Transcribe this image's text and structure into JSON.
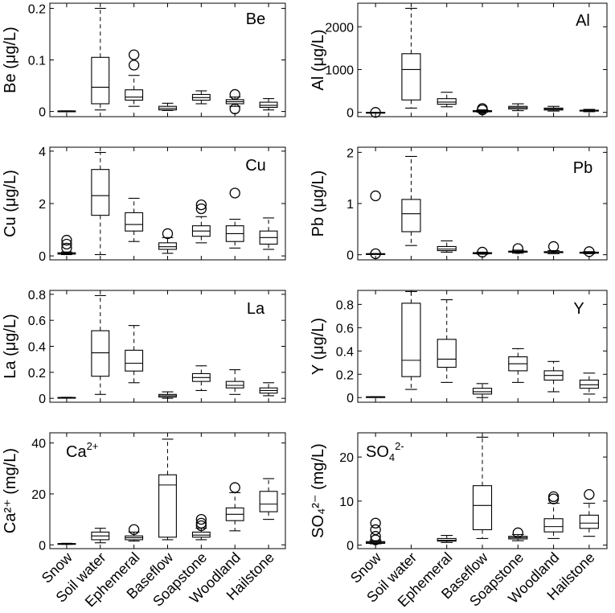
{
  "chart_data": [
    {
      "type": "boxplot",
      "label": "Be",
      "ylabel": "Be (μg/L)",
      "ylim": [
        -0.01,
        0.21
      ],
      "yticks": [
        0,
        0.1,
        0.2
      ],
      "categories": [
        "Snow",
        "Soil water",
        "Ephemeral",
        "Baseflow",
        "Soapstone",
        "Woodland",
        "Hailstone"
      ],
      "boxes": [
        {
          "min": 0.001,
          "q1": 0.001,
          "median": 0.001,
          "q3": 0.001,
          "max": 0.001,
          "outliers": []
        },
        {
          "min": 0.003,
          "q1": 0.015,
          "median": 0.047,
          "q3": 0.105,
          "max": 0.2,
          "outliers": []
        },
        {
          "min": 0.01,
          "q1": 0.022,
          "median": 0.028,
          "q3": 0.042,
          "max": 0.07,
          "outliers": [
            0.09,
            0.11
          ]
        },
        {
          "min": 0.002,
          "q1": 0.003,
          "median": 0.006,
          "q3": 0.01,
          "max": 0.016,
          "outliers": []
        },
        {
          "min": 0.015,
          "q1": 0.022,
          "median": 0.027,
          "q3": 0.033,
          "max": 0.04,
          "outliers": []
        },
        {
          "min": 0.01,
          "q1": 0.015,
          "median": 0.019,
          "q3": 0.023,
          "max": 0.028,
          "outliers": [
            0.033,
            0.005
          ]
        },
        {
          "min": 0.003,
          "q1": 0.008,
          "median": 0.012,
          "q3": 0.018,
          "max": 0.025,
          "outliers": []
        }
      ]
    },
    {
      "type": "boxplot",
      "label": "Al",
      "ylabel": "Al (μg/L)",
      "ylim": [
        -100,
        2550
      ],
      "yticks": [
        0,
        1000,
        2000
      ],
      "categories": [
        "Snow",
        "Soil water",
        "Ephemeral",
        "Baseflow",
        "Soapstone",
        "Woodland",
        "Hailstone"
      ],
      "boxes": [
        {
          "min": 0,
          "q1": 0,
          "median": 0,
          "q3": 0,
          "max": 0,
          "outliers": [
            0
          ]
        },
        {
          "min": 100,
          "q1": 290,
          "median": 1000,
          "q3": 1370,
          "max": 2430,
          "outliers": []
        },
        {
          "min": 130,
          "q1": 190,
          "median": 240,
          "q3": 320,
          "max": 470,
          "outliers": []
        },
        {
          "min": 5,
          "q1": 15,
          "median": 25,
          "q3": 40,
          "max": 60,
          "outliers": [
            60,
            90
          ]
        },
        {
          "min": 40,
          "q1": 80,
          "median": 110,
          "q3": 140,
          "max": 200,
          "outliers": []
        },
        {
          "min": 30,
          "q1": 55,
          "median": 75,
          "q3": 100,
          "max": 140,
          "outliers": []
        },
        {
          "min": 15,
          "q1": 30,
          "median": 40,
          "q3": 50,
          "max": 70,
          "outliers": []
        }
      ]
    },
    {
      "type": "boxplot",
      "label": "Cu",
      "ylabel": "Cu (μg/L)",
      "ylim": [
        -0.15,
        4.15
      ],
      "yticks": [
        0,
        2,
        4
      ],
      "categories": [
        "Snow",
        "Soil water",
        "Ephemeral",
        "Baseflow",
        "Soapstone",
        "Woodland",
        "Hailstone"
      ],
      "boxes": [
        {
          "min": 0.05,
          "q1": 0.07,
          "median": 0.09,
          "q3": 0.12,
          "max": 0.15,
          "outliers": [
            0.3,
            0.45,
            0.6
          ]
        },
        {
          "min": 0.05,
          "q1": 1.55,
          "median": 2.3,
          "q3": 3.3,
          "max": 3.95,
          "outliers": []
        },
        {
          "min": 0.55,
          "q1": 0.95,
          "median": 1.2,
          "q3": 1.65,
          "max": 2.2,
          "outliers": []
        },
        {
          "min": 0.1,
          "q1": 0.25,
          "median": 0.35,
          "q3": 0.5,
          "max": 0.7,
          "outliers": [
            0.85
          ]
        },
        {
          "min": 0.5,
          "q1": 0.75,
          "median": 0.95,
          "q3": 1.15,
          "max": 1.5,
          "outliers": [
            1.8,
            1.95
          ]
        },
        {
          "min": 0.3,
          "q1": 0.55,
          "median": 0.85,
          "q3": 1.15,
          "max": 1.4,
          "outliers": [
            2.4
          ]
        },
        {
          "min": 0.25,
          "q1": 0.45,
          "median": 0.7,
          "q3": 0.95,
          "max": 1.45,
          "outliers": []
        }
      ]
    },
    {
      "type": "boxplot",
      "label": "Pb",
      "ylabel": "Pb (μg/L)",
      "ylim": [
        -0.1,
        2.1
      ],
      "yticks": [
        0,
        1,
        2
      ],
      "categories": [
        "Snow",
        "Soil water",
        "Ephemeral",
        "Baseflow",
        "Soapstone",
        "Woodland",
        "Hailstone"
      ],
      "boxes": [
        {
          "min": 0.02,
          "q1": 0.02,
          "median": 0.02,
          "q3": 0.02,
          "max": 0.02,
          "outliers": [
            1.15,
            0.02
          ]
        },
        {
          "min": 0.18,
          "q1": 0.45,
          "median": 0.8,
          "q3": 1.08,
          "max": 1.92,
          "outliers": []
        },
        {
          "min": 0.05,
          "q1": 0.08,
          "median": 0.11,
          "q3": 0.16,
          "max": 0.27,
          "outliers": []
        },
        {
          "min": 0.01,
          "q1": 0.02,
          "median": 0.03,
          "q3": 0.04,
          "max": 0.05,
          "outliers": [
            0.05
          ]
        },
        {
          "min": 0.03,
          "q1": 0.05,
          "median": 0.06,
          "q3": 0.07,
          "max": 0.09,
          "outliers": [
            0.12
          ]
        },
        {
          "min": 0.02,
          "q1": 0.04,
          "median": 0.05,
          "q3": 0.06,
          "max": 0.08,
          "outliers": [
            0.16
          ]
        },
        {
          "min": 0.02,
          "q1": 0.03,
          "median": 0.04,
          "q3": 0.05,
          "max": 0.06,
          "outliers": [
            0.06
          ]
        }
      ]
    },
    {
      "type": "boxplot",
      "label": "La",
      "ylabel": "La (μg/L)",
      "ylim": [
        -0.03,
        0.83
      ],
      "yticks": [
        0,
        0.2,
        0.4,
        0.6,
        0.8
      ],
      "categories": [
        "Snow",
        "Soil water",
        "Ephemeral",
        "Baseflow",
        "Soapstone",
        "Woodland",
        "Hailstone"
      ],
      "boxes": [
        {
          "min": 0.005,
          "q1": 0.005,
          "median": 0.006,
          "q3": 0.007,
          "max": 0.008,
          "outliers": []
        },
        {
          "min": 0.03,
          "q1": 0.17,
          "median": 0.35,
          "q3": 0.52,
          "max": 0.79,
          "outliers": []
        },
        {
          "min": 0.12,
          "q1": 0.21,
          "median": 0.27,
          "q3": 0.37,
          "max": 0.56,
          "outliers": []
        },
        {
          "min": 0.0,
          "q1": 0.01,
          "median": 0.02,
          "q3": 0.03,
          "max": 0.05,
          "outliers": []
        },
        {
          "min": 0.06,
          "q1": 0.13,
          "median": 0.16,
          "q3": 0.19,
          "max": 0.25,
          "outliers": []
        },
        {
          "min": 0.03,
          "q1": 0.08,
          "median": 0.1,
          "q3": 0.13,
          "max": 0.22,
          "outliers": []
        },
        {
          "min": 0.02,
          "q1": 0.04,
          "median": 0.06,
          "q3": 0.08,
          "max": 0.12,
          "outliers": []
        }
      ]
    },
    {
      "type": "boxplot",
      "label": "Y",
      "ylabel": "Y (μg/L)",
      "ylim": [
        -0.04,
        0.92
      ],
      "yticks": [
        0,
        0.2,
        0.4,
        0.6,
        0.8
      ],
      "categories": [
        "Snow",
        "Soil water",
        "Ephemeral",
        "Baseflow",
        "Soapstone",
        "Woodland",
        "Hailstone"
      ],
      "boxes": [
        {
          "min": 0.005,
          "q1": 0.005,
          "median": 0.006,
          "q3": 0.007,
          "max": 0.008,
          "outliers": []
        },
        {
          "min": 0.07,
          "q1": 0.18,
          "median": 0.32,
          "q3": 0.81,
          "max": 0.91,
          "outliers": []
        },
        {
          "min": 0.13,
          "q1": 0.26,
          "median": 0.33,
          "q3": 0.5,
          "max": 0.84,
          "outliers": []
        },
        {
          "min": 0.0,
          "q1": 0.03,
          "median": 0.05,
          "q3": 0.08,
          "max": 0.12,
          "outliers": []
        },
        {
          "min": 0.13,
          "q1": 0.23,
          "median": 0.29,
          "q3": 0.35,
          "max": 0.42,
          "outliers": []
        },
        {
          "min": 0.05,
          "q1": 0.15,
          "median": 0.19,
          "q3": 0.23,
          "max": 0.31,
          "outliers": []
        },
        {
          "min": 0.03,
          "q1": 0.08,
          "median": 0.11,
          "q3": 0.15,
          "max": 0.21,
          "outliers": []
        }
      ]
    },
    {
      "type": "boxplot",
      "label": "Ca2+",
      "label_base": "Ca",
      "label_sup": "2+",
      "ylabel": "Ca²⁺ (mg/L)",
      "ylim": [
        -1.5,
        44
      ],
      "yticks": [
        0,
        20,
        40
      ],
      "categories": [
        "Snow",
        "Soil water",
        "Ephemeral",
        "Baseflow",
        "Soapstone",
        "Woodland",
        "Hailstone"
      ],
      "boxes": [
        {
          "min": 0.2,
          "q1": 0.3,
          "median": 0.4,
          "q3": 0.5,
          "max": 0.6,
          "outliers": []
        },
        {
          "min": 0.8,
          "q1": 2.0,
          "median": 3.5,
          "q3": 5.0,
          "max": 6.5,
          "outliers": []
        },
        {
          "min": 1.5,
          "q1": 2.0,
          "median": 2.8,
          "q3": 3.5,
          "max": 5.0,
          "outliers": [
            6.0
          ]
        },
        {
          "min": 2.0,
          "q1": 3.0,
          "median": 23.5,
          "q3": 27.5,
          "max": 41.5,
          "outliers": []
        },
        {
          "min": 2.0,
          "q1": 3.0,
          "median": 3.8,
          "q3": 5.0,
          "max": 6.5,
          "outliers": [
            7.5,
            8.5,
            10.0
          ]
        },
        {
          "min": 5.5,
          "q1": 9.5,
          "median": 12.0,
          "q3": 14.5,
          "max": 20.5,
          "outliers": [
            22.5
          ]
        },
        {
          "min": 10.0,
          "q1": 13.0,
          "median": 16.0,
          "q3": 21.0,
          "max": 26.0,
          "outliers": []
        }
      ]
    },
    {
      "type": "boxplot",
      "label": "SO42-",
      "label_base": "SO",
      "label_sub": "4",
      "label_sup": "2-",
      "ylabel": "SO₄²⁻ (mg/L)",
      "ylim": [
        -0.8,
        25.5
      ],
      "yticks": [
        0,
        10,
        20
      ],
      "categories": [
        "Snow",
        "Soil water",
        "Ephemeral",
        "Baseflow",
        "Soapstone",
        "Woodland",
        "Hailstone"
      ],
      "boxes": [
        {
          "min": 0.3,
          "q1": 0.4,
          "median": 0.6,
          "q3": 0.8,
          "max": 1.0,
          "outliers": [
            1.2,
            2.0,
            3.5,
            5.0
          ]
        },
        null,
        {
          "min": 0.6,
          "q1": 0.9,
          "median": 1.1,
          "q3": 1.5,
          "max": 2.2,
          "outliers": []
        },
        {
          "min": 1.5,
          "q1": 3.5,
          "median": 9.0,
          "q3": 13.5,
          "max": 24.5,
          "outliers": []
        },
        {
          "min": 1.0,
          "q1": 1.4,
          "median": 1.7,
          "q3": 2.0,
          "max": 2.4,
          "outliers": [
            2.8
          ]
        },
        {
          "min": 1.5,
          "q1": 3.0,
          "median": 4.2,
          "q3": 6.0,
          "max": 9.5,
          "outliers": [
            10.5,
            11.0
          ]
        },
        {
          "min": 2.0,
          "q1": 3.8,
          "median": 5.0,
          "q3": 6.8,
          "max": 9.5,
          "outliers": [
            11.5
          ]
        }
      ]
    }
  ]
}
